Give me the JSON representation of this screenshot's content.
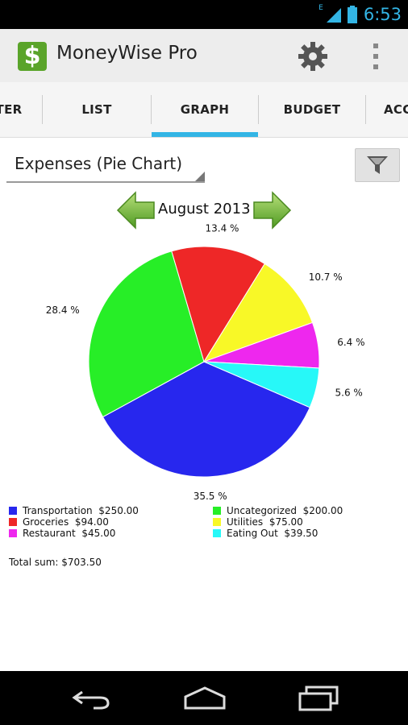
{
  "status": {
    "time": "6:53",
    "network": "E"
  },
  "app": {
    "title": "MoneyWise Pro"
  },
  "tabs": [
    {
      "label": "TER"
    },
    {
      "label": "LIST"
    },
    {
      "label": "GRAPH",
      "selected": true
    },
    {
      "label": "BUDGET"
    },
    {
      "label": "ACC"
    }
  ],
  "report": {
    "selected": "Expenses (Pie Chart)"
  },
  "period": {
    "label": "August 2013"
  },
  "chart_data": {
    "type": "pie",
    "slices": [
      {
        "label": "Transportation",
        "amount": "$250.00",
        "value": 250.0,
        "percent": "35.5 %",
        "color": "#2727ee"
      },
      {
        "label": "Uncategorized",
        "amount": "$200.00",
        "value": 200.0,
        "percent": "28.4 %",
        "color": "#27ee27"
      },
      {
        "label": "Groceries",
        "amount": "$94.00",
        "value": 94.0,
        "percent": "13.4 %",
        "color": "#ee2727"
      },
      {
        "label": "Utilities",
        "amount": "$75.00",
        "value": 75.0,
        "percent": "10.7 %",
        "color": "#f8f827"
      },
      {
        "label": "Restaurant",
        "amount": "$45.00",
        "value": 45.0,
        "percent": "6.4 %",
        "color": "#ee27ee"
      },
      {
        "label": "Eating Out",
        "amount": "$39.50",
        "value": 39.5,
        "percent": "5.6 %",
        "color": "#27f8f8"
      }
    ],
    "total_label": "Total sum: $703.50"
  },
  "colors": {
    "accent": "#33b5e5",
    "app_icon": "#5aa42a"
  }
}
